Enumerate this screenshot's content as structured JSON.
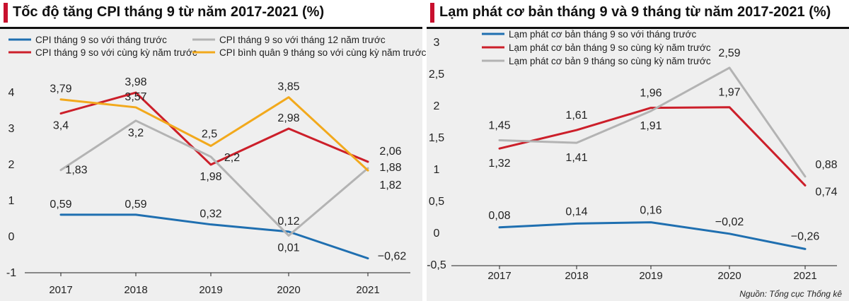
{
  "chart_data": [
    {
      "type": "line",
      "title": "Tốc độ tăng CPI tháng 9 từ năm 2017-2021 (%)",
      "categories": [
        "2017",
        "2018",
        "2019",
        "2020",
        "2021"
      ],
      "ylim": [
        -1,
        4.6
      ],
      "yticks": [
        -1,
        0,
        1,
        2,
        3,
        4
      ],
      "grid": false,
      "legend_position": "top",
      "series": [
        {
          "name": "CPI tháng 9 so với tháng trước",
          "color": "#1f6fb0",
          "values": [
            0.59,
            0.59,
            0.32,
            0.12,
            -0.62
          ],
          "labels": [
            "0,59",
            "0,59",
            "0,32",
            "0,12",
            "−0,62"
          ]
        },
        {
          "name": "CPI tháng 9 so với cùng kỳ năm trước",
          "color": "#cc1f2a",
          "values": [
            3.4,
            3.98,
            1.98,
            2.98,
            2.06
          ],
          "labels": [
            "3,4",
            "3,98",
            "1,98",
            "2,98",
            "2,06"
          ]
        },
        {
          "name": "CPI tháng 9 so với tháng 12 năm trước",
          "color": "#b3b3b3",
          "values": [
            1.83,
            3.2,
            2.2,
            0.01,
            1.88
          ],
          "labels": [
            "1,83",
            "3,2",
            "2,2",
            "0,01",
            "1,88"
          ]
        },
        {
          "name": "CPI bình quân 9 tháng so với cùng kỳ năm trước",
          "color": "#f2a91c",
          "values": [
            3.79,
            3.57,
            2.5,
            3.85,
            1.82
          ],
          "labels": [
            "3,79",
            "3,57",
            "2,5",
            "3,85",
            "1,82"
          ]
        }
      ]
    },
    {
      "type": "line",
      "title": "Lạm phát cơ bản tháng 9 và 9 tháng từ năm 2017-2021 (%)",
      "categories": [
        "2017",
        "2018",
        "2019",
        "2020",
        "2021"
      ],
      "ylim": [
        -0.5,
        3
      ],
      "yticks": [
        -0.5,
        0,
        0.5,
        1,
        1.5,
        2,
        2.5,
        3
      ],
      "grid": false,
      "legend_position": "top-left",
      "series": [
        {
          "name": "Lạm phát cơ bản tháng 9 so với tháng trước",
          "color": "#1f6fb0",
          "values": [
            0.08,
            0.14,
            0.16,
            -0.02,
            -0.26
          ],
          "labels": [
            "0,08",
            "0,14",
            "0,16",
            "−0,02",
            "−0,26"
          ]
        },
        {
          "name": "Lạm phát cơ bản tháng 9 so cùng kỳ năm trước",
          "color": "#cc1f2a",
          "values": [
            1.32,
            1.61,
            1.96,
            1.97,
            0.74
          ],
          "labels": [
            "1,32",
            "1,61",
            "1,96",
            "1,97",
            "0,74"
          ]
        },
        {
          "name": "Lạm phát cơ bản 9 tháng so cùng kỳ năm trước",
          "color": "#b3b3b3",
          "values": [
            1.45,
            1.41,
            1.91,
            2.59,
            0.88
          ],
          "labels": [
            "1,45",
            "1,41",
            "1,91",
            "2,59",
            "0,88"
          ]
        }
      ]
    }
  ],
  "source": "Nguồn: Tổng cục Thống kê"
}
